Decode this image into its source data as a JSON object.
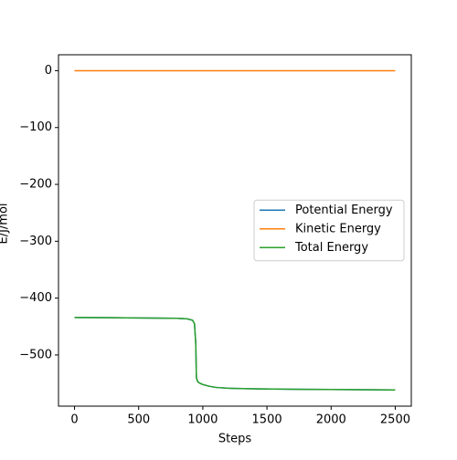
{
  "chart_data": {
    "type": "line",
    "x_label": "Steps",
    "y_label": "E/J/mol",
    "x": [
      0,
      200,
      400,
      600,
      800,
      880,
      920,
      935,
      945,
      950,
      960,
      980,
      1000,
      1050,
      1100,
      1200,
      1400,
      1700,
      2000,
      2500
    ],
    "series": [
      {
        "name": "Potential Energy",
        "color": "#1f77b4",
        "values": [
          -434,
          -434.3,
          -434.6,
          -435,
          -435.5,
          -436.5,
          -439,
          -445,
          -480,
          -540,
          -547,
          -550,
          -552,
          -555,
          -557,
          -558.5,
          -559.5,
          -560.3,
          -560.8,
          -561.5
        ]
      },
      {
        "name": "Kinetic Energy",
        "color": "#ff7f0e",
        "values": [
          0,
          0,
          0,
          0,
          0,
          0,
          0,
          0,
          0,
          0,
          0,
          0,
          0,
          0,
          0,
          0,
          0,
          0,
          0,
          0
        ]
      },
      {
        "name": "Total Energy",
        "color": "#2ca02c",
        "values": [
          -434,
          -434.3,
          -434.6,
          -435,
          -435.5,
          -436.5,
          -439,
          -445,
          -480,
          -540,
          -547,
          -550,
          -552,
          -555,
          -557,
          -558.5,
          -559.5,
          -560.3,
          -560.8,
          -561.5
        ]
      }
    ],
    "xlim": [
      -125,
      2625
    ],
    "xticks": [
      0,
      500,
      1000,
      1500,
      2000,
      2500
    ],
    "ylim": [
      -590,
      28
    ],
    "yticks": [
      0,
      {
        "value": -100,
        "label": "−100"
      },
      {
        "value": -200,
        "label": "−200"
      },
      {
        "value": -300,
        "label": "−300"
      },
      {
        "value": -400,
        "label": "−400"
      },
      {
        "value": -500,
        "label": "−500"
      }
    ],
    "legend": "center right"
  }
}
